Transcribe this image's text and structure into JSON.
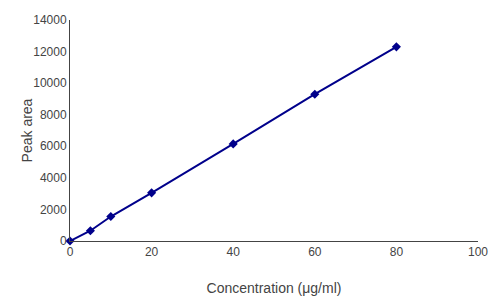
{
  "chart_data": {
    "type": "line",
    "x": [
      0,
      5,
      10,
      20,
      40,
      60,
      80
    ],
    "values": [
      0,
      650,
      1550,
      3050,
      6150,
      9300,
      12300
    ],
    "color": "#00008B",
    "marker": "diamond",
    "xlabel": "Concentration (μg/ml)",
    "ylabel": "Peak area",
    "xlim": [
      0,
      100
    ],
    "ylim": [
      0,
      14000
    ],
    "xticks": [
      0,
      20,
      40,
      60,
      80,
      100
    ],
    "yticks": [
      0,
      2000,
      4000,
      6000,
      8000,
      10000,
      12000,
      14000
    ],
    "grid": false
  }
}
